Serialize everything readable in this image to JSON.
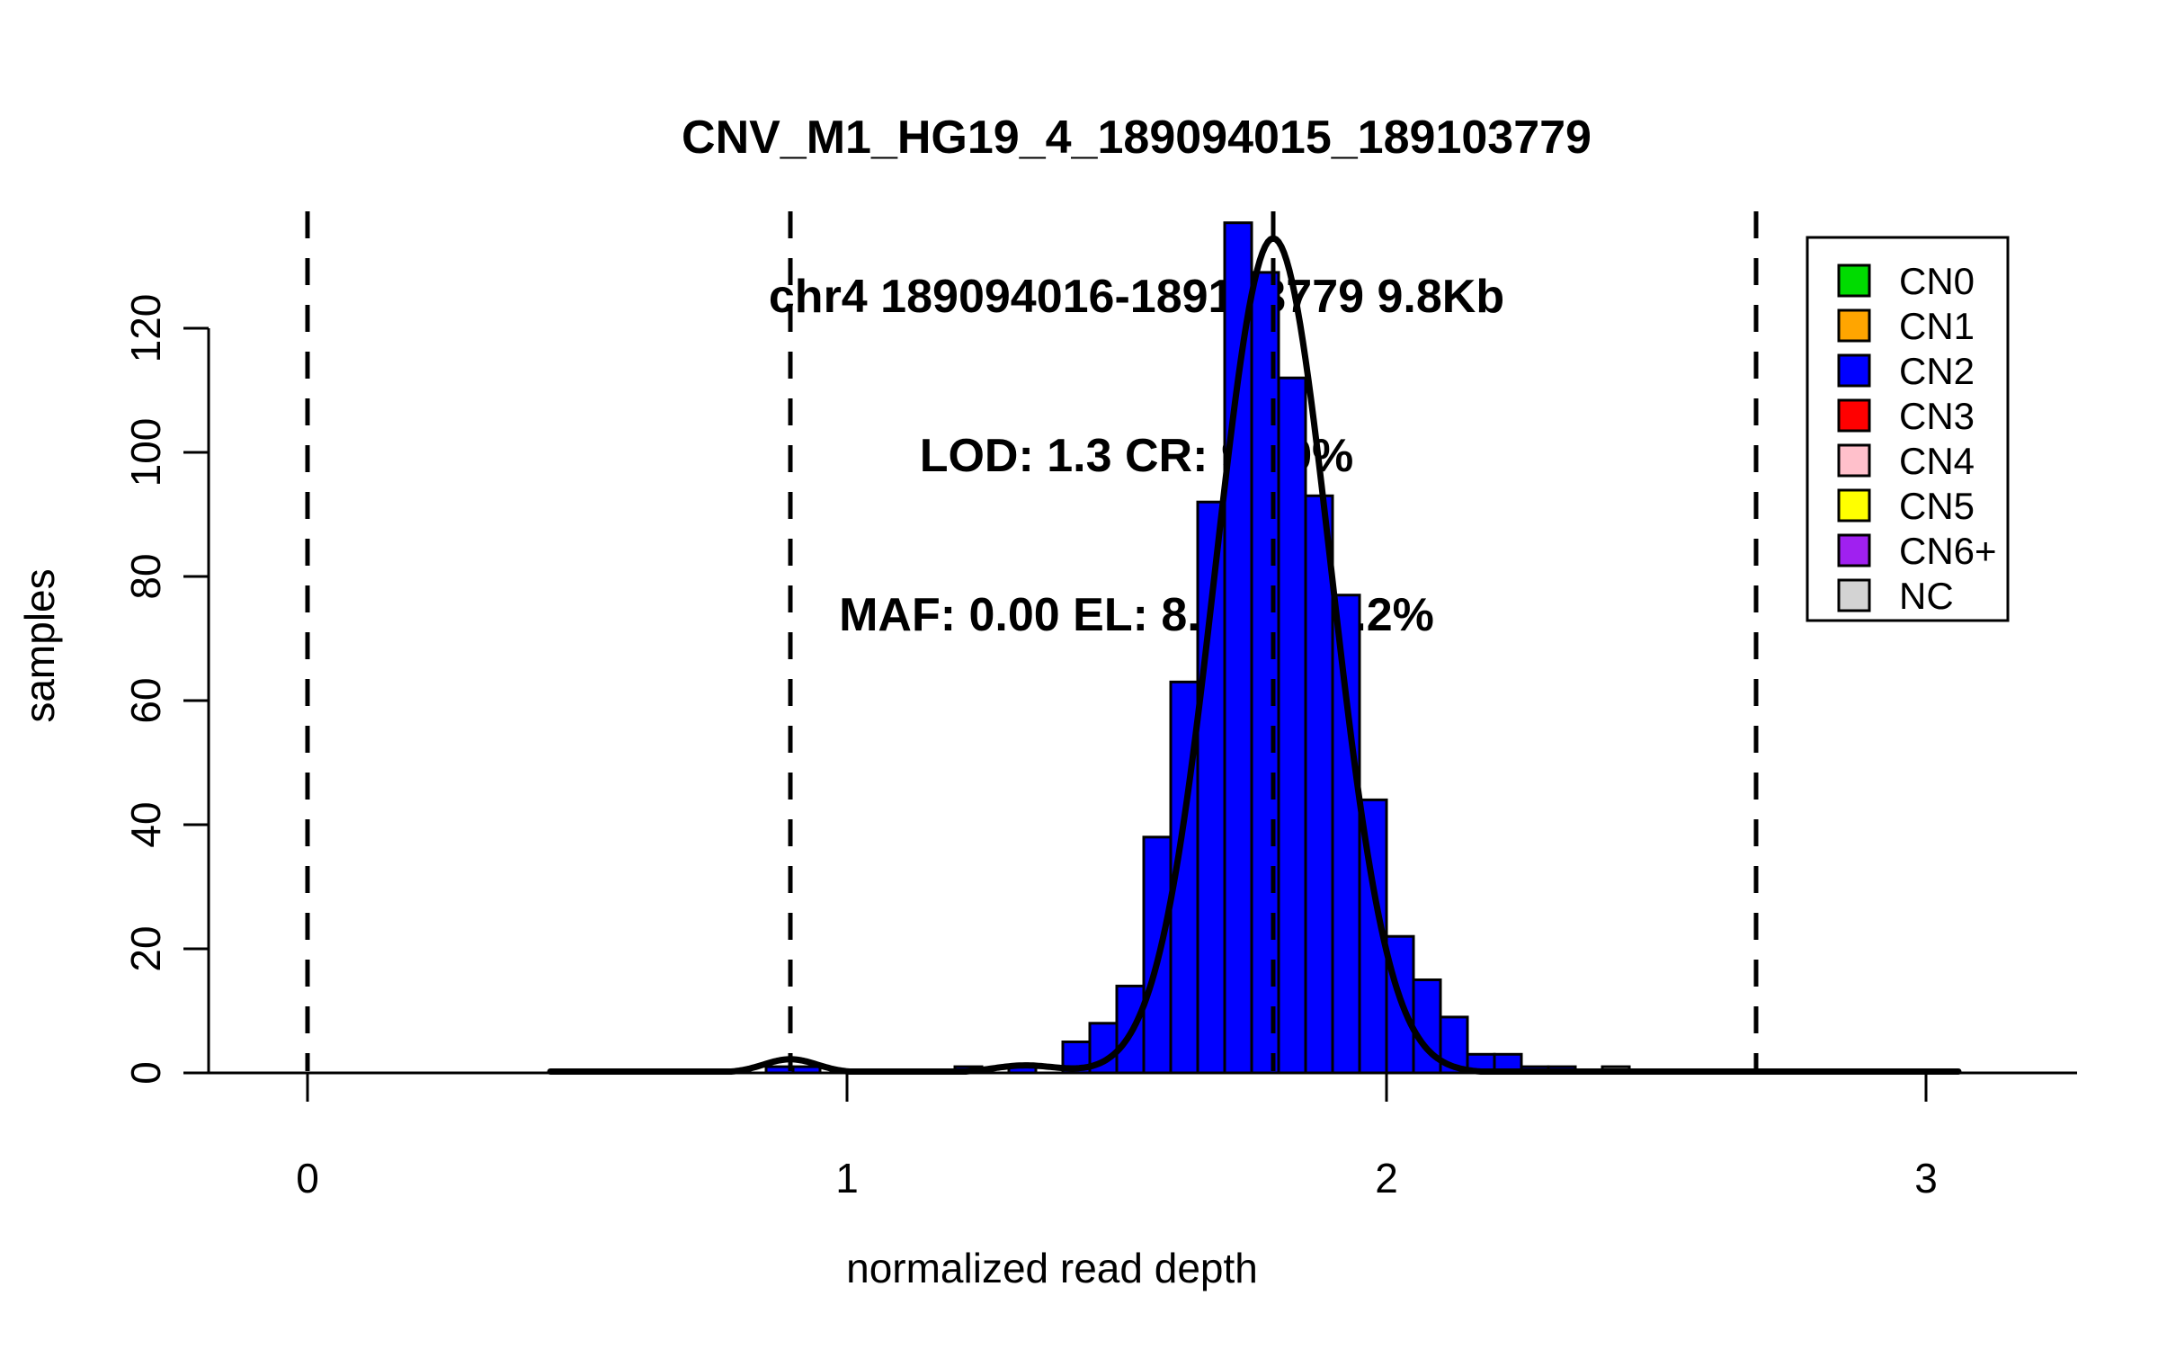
{
  "figure": {
    "title_lines": [
      "CNV_M1_HG19_4_189094015_189103779",
      "chr4 189094016-189103779 9.8Kb",
      "LOD: 1.3 CR: 99.9%",
      "MAF: 0.00 EL: 8.0Kb 82.2%"
    ],
    "stats": {
      "cnv_id": "CNV_M1_HG19_4_189094015_189103779",
      "region": "chr4 189094016-189103779",
      "region_size": "9.8Kb",
      "lod": "1.3",
      "call_rate": "99.9%",
      "maf": "0.00",
      "effective_length": "8.0Kb",
      "effective_length_pct": "82.2%"
    }
  },
  "chart_data": {
    "type": "bar",
    "subtype": "histogram-with-density-fit",
    "title": "CNV_M1_HG19_4_189094015_189103779",
    "xlabel": "normalized read depth",
    "ylabel": "samples",
    "x_ticks": [
      0,
      1,
      2,
      3
    ],
    "y_ticks": [
      0,
      20,
      40,
      60,
      80,
      100,
      120
    ],
    "xlim": [
      -0.22,
      3.28
    ],
    "ylim": [
      0,
      142
    ],
    "grid": false,
    "bin_width": 0.05,
    "bars": [
      {
        "x0": 0.85,
        "x1": 0.9,
        "count": 1,
        "group": "CN2"
      },
      {
        "x0": 0.9,
        "x1": 0.95,
        "count": 1,
        "group": "CN2"
      },
      {
        "x0": 1.2,
        "x1": 1.25,
        "count": 1,
        "group": "CN2"
      },
      {
        "x0": 1.3,
        "x1": 1.35,
        "count": 1,
        "group": "CN2"
      },
      {
        "x0": 1.4,
        "x1": 1.45,
        "count": 5,
        "group": "CN2"
      },
      {
        "x0": 1.45,
        "x1": 1.5,
        "count": 8,
        "group": "CN2"
      },
      {
        "x0": 1.5,
        "x1": 1.55,
        "count": 14,
        "group": "CN2"
      },
      {
        "x0": 1.55,
        "x1": 1.6,
        "count": 38,
        "group": "CN2"
      },
      {
        "x0": 1.6,
        "x1": 1.65,
        "count": 63,
        "group": "CN2"
      },
      {
        "x0": 1.65,
        "x1": 1.7,
        "count": 92,
        "group": "CN2"
      },
      {
        "x0": 1.7,
        "x1": 1.75,
        "count": 137,
        "group": "CN2"
      },
      {
        "x0": 1.75,
        "x1": 1.8,
        "count": 129,
        "group": "CN2"
      },
      {
        "x0": 1.8,
        "x1": 1.85,
        "count": 112,
        "group": "CN2"
      },
      {
        "x0": 1.85,
        "x1": 1.9,
        "count": 93,
        "group": "CN2"
      },
      {
        "x0": 1.9,
        "x1": 1.95,
        "count": 77,
        "group": "CN2"
      },
      {
        "x0": 1.95,
        "x1": 2.0,
        "count": 44,
        "group": "CN2"
      },
      {
        "x0": 2.0,
        "x1": 2.05,
        "count": 22,
        "group": "CN2"
      },
      {
        "x0": 2.05,
        "x1": 2.1,
        "count": 15,
        "group": "CN2"
      },
      {
        "x0": 2.1,
        "x1": 2.15,
        "count": 9,
        "group": "CN2"
      },
      {
        "x0": 2.15,
        "x1": 2.2,
        "count": 3,
        "group": "CN2"
      },
      {
        "x0": 2.2,
        "x1": 2.25,
        "count": 3,
        "group": "CN2"
      },
      {
        "x0": 2.25,
        "x1": 2.3,
        "count": 1,
        "group": "CN2"
      },
      {
        "x0": 2.3,
        "x1": 2.35,
        "count": 1,
        "group": "CN2"
      },
      {
        "x0": 2.4,
        "x1": 2.45,
        "count": 1,
        "group": "NC"
      }
    ],
    "fit_curve": {
      "color": "#000000",
      "components": [
        {
          "mean": 1.79,
          "sd": 0.107,
          "peak": 134.5
        },
        {
          "mean": 0.895,
          "sd": 0.05,
          "peak": 2.2
        },
        {
          "mean": 1.33,
          "sd": 0.06,
          "peak": 1.2
        }
      ]
    },
    "cn_dashed_lines": [
      {
        "label": "CN0",
        "x": 0.0
      },
      {
        "label": "CN1",
        "x": 0.895
      },
      {
        "label": "CN2",
        "x": 1.79
      },
      {
        "label": "CN3",
        "x": 2.685
      }
    ],
    "legend": {
      "position": "top-right",
      "entries": [
        {
          "label": "CN0",
          "color": "#00DC00"
        },
        {
          "label": "CN1",
          "color": "#FFA500"
        },
        {
          "label": "CN2",
          "color": "#0000FF"
        },
        {
          "label": "CN3",
          "color": "#FF0000"
        },
        {
          "label": "CN4",
          "color": "#FFC0CB"
        },
        {
          "label": "CN5",
          "color": "#FFFF00"
        },
        {
          "label": "CN6+",
          "color": "#A020F0"
        },
        {
          "label": "NC",
          "color": "#D3D3D3"
        }
      ]
    },
    "colors": {
      "bar_fill": "#0000FF",
      "nc_fill": "#D3D3D3",
      "axis": "#000000"
    }
  }
}
